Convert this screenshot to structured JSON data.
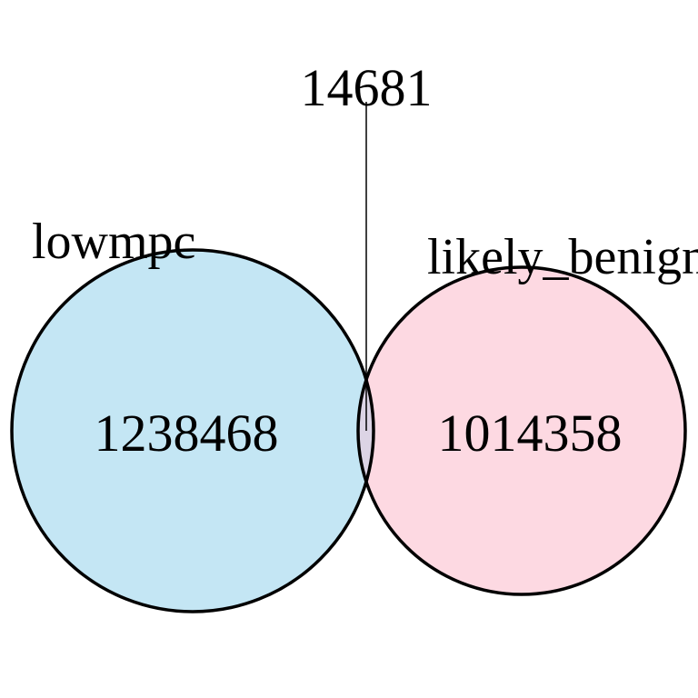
{
  "venn": {
    "sets": [
      {
        "label": "lowmpc",
        "only_count": "1238468",
        "fill": "#c4e6f4"
      },
      {
        "label": "likely_benign",
        "only_count": "1014358",
        "fill": "#fdd9e2"
      }
    ],
    "intersection": {
      "count": "14681",
      "fill": "#dcd4e5"
    },
    "outline_color": "#000000"
  }
}
